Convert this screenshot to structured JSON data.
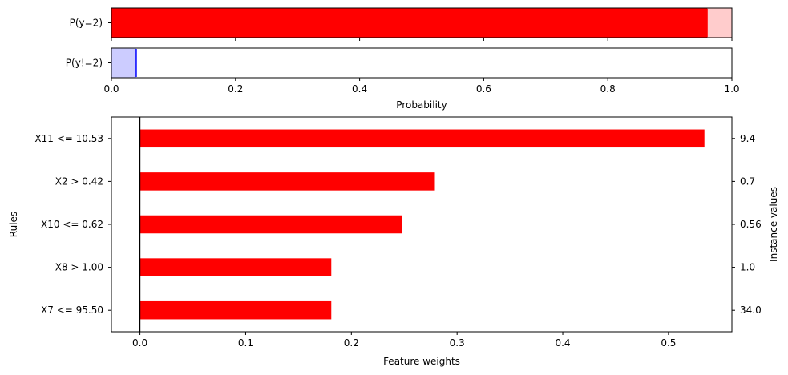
{
  "chart_data": [
    {
      "type": "bar",
      "orientation": "horizontal",
      "categories": [
        "P(y=2)"
      ],
      "values": [
        0.96
      ],
      "interval": [
        0.96,
        1.0
      ],
      "xlim": [
        0,
        1
      ],
      "ticks": [
        0.0,
        0.2,
        0.4,
        0.6,
        0.8,
        1.0
      ],
      "tick_labels": [
        "",
        "",
        "",
        "",
        "",
        ""
      ],
      "xlabel": "",
      "colors": {
        "bar": "#ff0000",
        "band": "#ffcccc",
        "edge": "#ff0000"
      }
    },
    {
      "type": "bar",
      "orientation": "horizontal",
      "categories": [
        "P(y!=2)"
      ],
      "values": [
        0.04
      ],
      "interval": [
        0.0,
        0.04
      ],
      "xlim": [
        0,
        1
      ],
      "ticks": [
        0.0,
        0.2,
        0.4,
        0.6,
        0.8,
        1.0
      ],
      "tick_labels": [
        "0.0",
        "0.2",
        "0.4",
        "0.6",
        "0.8",
        "1.0"
      ],
      "xlabel": "Probability",
      "colors": {
        "bar": "#0000ff",
        "band": "#ccccff",
        "edge": "#0000ff"
      }
    },
    {
      "type": "bar",
      "orientation": "horizontal",
      "categories": [
        "X11 <= 10.53",
        "X2 > 0.42",
        "X10 <= 0.62",
        "X8 > 1.00",
        "X7 <= 95.50"
      ],
      "values": [
        0.534,
        0.279,
        0.248,
        0.181,
        0.181
      ],
      "instance_values": [
        "9.4",
        "0.7",
        "0.56",
        "1.0",
        "34.0"
      ],
      "xlim": [
        -0.027,
        0.56
      ],
      "ticks": [
        0.0,
        0.1,
        0.2,
        0.3,
        0.4,
        0.5
      ],
      "tick_labels": [
        "0.0",
        "0.1",
        "0.2",
        "0.3",
        "0.4",
        "0.5"
      ],
      "xlabel": "Feature weights",
      "ylabel": "Rules",
      "ylabel_right": "Instance values",
      "colors": {
        "bar": "#ff0000",
        "zero_line": "#000000"
      }
    }
  ]
}
